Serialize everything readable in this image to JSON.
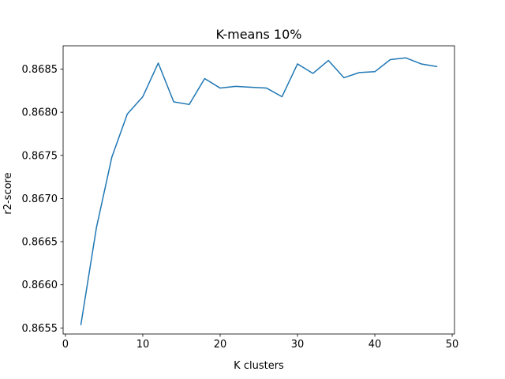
{
  "chart_data": {
    "type": "line",
    "title": "K-means 10%",
    "xlabel": "K clusters",
    "ylabel": "r2-score",
    "xlim": [
      -0.3,
      50.3
    ],
    "ylim": [
      0.86543,
      0.86877
    ],
    "x_ticks": [
      0,
      10,
      20,
      30,
      40,
      50
    ],
    "x_tick_labels": [
      "0",
      "10",
      "20",
      "30",
      "40",
      "50"
    ],
    "y_ticks": [
      0.8655,
      0.866,
      0.8665,
      0.867,
      0.8675,
      0.868,
      0.8685
    ],
    "y_tick_labels": [
      "0.8655",
      "0.8660",
      "0.8665",
      "0.8670",
      "0.8675",
      "0.8680",
      "0.8685"
    ],
    "grid": false,
    "series": [
      {
        "color": "#1f77b4",
        "x": [
          2,
          4,
          6,
          8,
          10,
          12,
          14,
          16,
          18,
          20,
          22,
          24,
          26,
          28,
          30,
          32,
          34,
          36,
          38,
          40,
          42,
          44,
          46,
          48
        ],
        "y": [
          0.86554,
          0.86666,
          0.86748,
          0.86798,
          0.86818,
          0.86857,
          0.86812,
          0.86809,
          0.86839,
          0.86828,
          0.8683,
          0.86829,
          0.86828,
          0.86818,
          0.86856,
          0.86845,
          0.8686,
          0.8684,
          0.86846,
          0.86847,
          0.86861,
          0.86863,
          0.86856,
          0.86853
        ]
      }
    ]
  }
}
